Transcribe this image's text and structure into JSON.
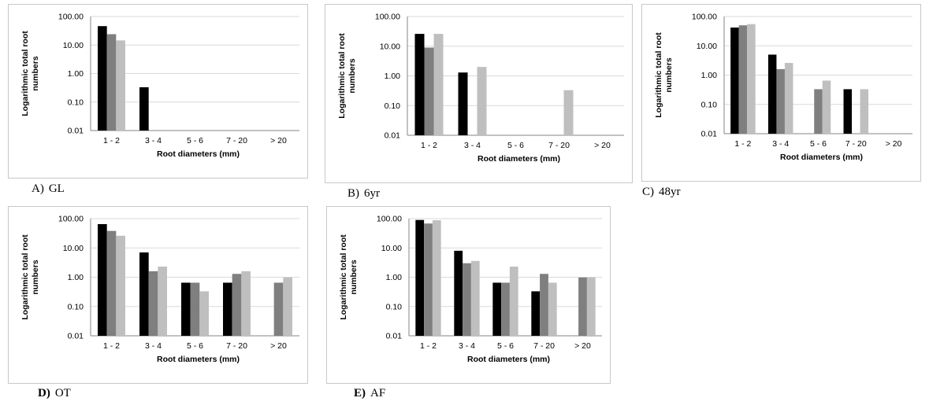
{
  "colors": {
    "series": [
      "#000000",
      "#7f7f7f",
      "#bfbfbf"
    ],
    "grid": "#d9d9d9",
    "axis": "#868686"
  },
  "chart_data": [
    {
      "type": "bar",
      "caption_letter": "A)",
      "caption_text": "GL",
      "xlabel": "Root diameters (mm)",
      "ylabel": "Logarithmic total root numbers",
      "ylabel_lines": [
        "Logarithmic total root",
        "numbers"
      ],
      "yscale": "log",
      "ylim": [
        0.01,
        100
      ],
      "yticks": [
        "0.01",
        "0.10",
        "1.00",
        "10.00",
        "100.00"
      ],
      "grid": true,
      "categories": [
        "1 - 2",
        "3 - 4",
        "5 - 6",
        "7 - 20",
        "> 20"
      ],
      "series": [
        {
          "values": [
            46,
            0.33,
            null,
            null,
            null
          ]
        },
        {
          "values": [
            24,
            null,
            null,
            null,
            null
          ]
        },
        {
          "values": [
            14.5,
            null,
            null,
            null,
            null
          ]
        }
      ]
    },
    {
      "type": "bar",
      "caption_letter": "B)",
      "caption_text": "6yr",
      "xlabel": "Root diameters (mm)",
      "ylabel": "Logarithmic total root numbers",
      "ylabel_lines": [
        "Logarithmic total root",
        "numbers"
      ],
      "yscale": "log",
      "ylim": [
        0.01,
        100
      ],
      "yticks": [
        "0.01",
        "0.10",
        "1.00",
        "10.00",
        "100.00"
      ],
      "grid": true,
      "categories": [
        "1 - 2",
        "3 - 4",
        "5 - 6",
        "7 - 20",
        "> 20"
      ],
      "series": [
        {
          "values": [
            26,
            1.3,
            null,
            null,
            null
          ]
        },
        {
          "values": [
            9,
            null,
            null,
            null,
            null
          ]
        },
        {
          "values": [
            26,
            2,
            null,
            0.33,
            null
          ]
        }
      ]
    },
    {
      "type": "bar",
      "caption_letter": "C)",
      "caption_text": "48yr",
      "xlabel": "Root diameters (mm)",
      "ylabel": "Logarithmic total root numbers",
      "ylabel_lines": [
        "Logarithmic total root",
        "numbers"
      ],
      "yscale": "log",
      "ylim": [
        0.01,
        100
      ],
      "yticks": [
        "0.01",
        "0.10",
        "1.00",
        "10.00",
        "100.00"
      ],
      "grid": true,
      "categories": [
        "1 - 2",
        "3 - 4",
        "5 - 6",
        "7 - 20",
        "> 20"
      ],
      "series": [
        {
          "values": [
            42,
            5,
            null,
            0.33,
            null
          ]
        },
        {
          "values": [
            50,
            1.6,
            0.33,
            null,
            null
          ]
        },
        {
          "values": [
            55,
            2.6,
            0.65,
            0.33,
            null
          ]
        }
      ]
    },
    {
      "type": "bar",
      "caption_letter": "D)",
      "caption_text": "OT",
      "xlabel": "Root diameters (mm)",
      "ylabel": "Logarithmic total root numbers",
      "ylabel_lines": [
        "Logarithmic total root",
        "numbers"
      ],
      "yscale": "log",
      "ylim": [
        0.01,
        100
      ],
      "yticks": [
        "0.01",
        "0.10",
        "1.00",
        "10.00",
        "100.00"
      ],
      "grid": true,
      "categories": [
        "1 - 2",
        "3 - 4",
        "5 - 6",
        "7 - 20",
        "> 20"
      ],
      "series": [
        {
          "values": [
            65,
            7,
            0.65,
            0.65,
            null
          ]
        },
        {
          "values": [
            38,
            1.6,
            0.65,
            1.3,
            0.65
          ]
        },
        {
          "values": [
            26,
            2.3,
            0.33,
            1.6,
            0.98
          ]
        }
      ]
    },
    {
      "type": "bar",
      "caption_letter": "E)",
      "caption_text": "AF",
      "xlabel": "Root diameters (mm)",
      "ylabel": "Logarithmic total root numbers",
      "ylabel_lines": [
        "Logarithmic total root",
        "numbers"
      ],
      "yscale": "log",
      "ylim": [
        0.01,
        100
      ],
      "yticks": [
        "0.01",
        "0.10",
        "1.00",
        "10.00",
        "100.00"
      ],
      "grid": true,
      "categories": [
        "1 - 2",
        "3 - 4",
        "5 - 6",
        "7 - 20",
        "> 20"
      ],
      "series": [
        {
          "values": [
            90,
            8,
            0.65,
            0.33,
            null
          ]
        },
        {
          "values": [
            68,
            3,
            0.65,
            1.3,
            0.98
          ]
        },
        {
          "values": [
            88,
            3.6,
            2.3,
            0.65,
            0.98
          ]
        }
      ]
    }
  ]
}
